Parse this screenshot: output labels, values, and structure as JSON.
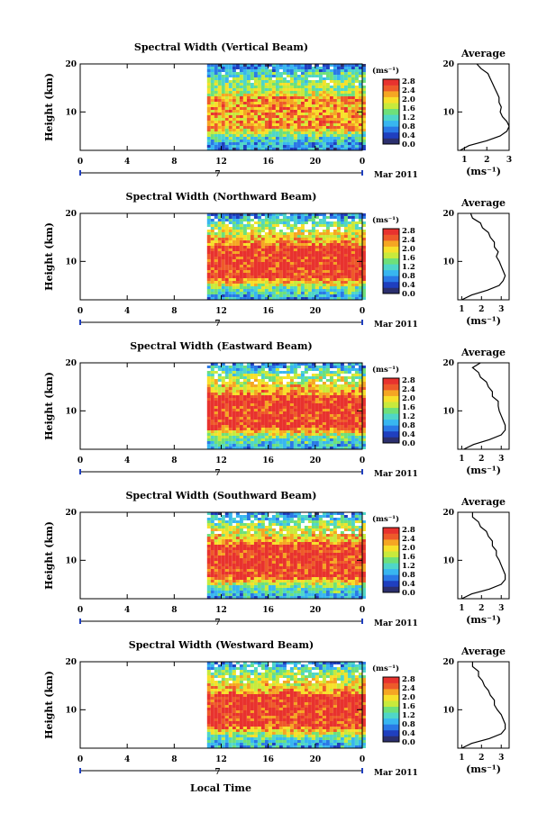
{
  "page": {
    "xlabel": "Local Time"
  },
  "colors": {
    "ramp": [
      "#2b2f6e",
      "#1f3fbf",
      "#2a79e6",
      "#38b6f0",
      "#4fd6c8",
      "#6ee07a",
      "#c8ea3c",
      "#f7e02a",
      "#f5a623",
      "#ee5a2a",
      "#e8322e"
    ]
  },
  "chart_data": [
    {
      "type": "heatmap",
      "title": "Spectral Width (Vertical Beam)",
      "beam": "Vertical",
      "ylabel": "Height (km)",
      "y_ticks": [
        10,
        20
      ],
      "ylim": [
        2,
        20
      ],
      "x_ticks": [
        "0",
        "4",
        "8",
        "12",
        "16",
        "20",
        "0"
      ],
      "xlim": [
        0,
        24
      ],
      "day_label": "7",
      "month_label": "Mar 2011",
      "colorbar": {
        "unit": "(ms⁻¹)",
        "ticks": [
          "2.8",
          "2.4",
          "2.0",
          "1.6",
          "1.2",
          "0.8",
          "0.4",
          "0.0"
        ],
        "range": [
          0,
          2.8
        ]
      },
      "data_start_hour": 10.8,
      "average": {
        "title": "Average",
        "xunit": "(ms⁻¹)",
        "x_ticks": [
          "1",
          "2",
          "3"
        ],
        "xlim": [
          0.7,
          3
        ],
        "heights": [
          2,
          3,
          4,
          5,
          6,
          7,
          8,
          9,
          10,
          11,
          12,
          13,
          14,
          15,
          16,
          17,
          18,
          19,
          20
        ],
        "values": [
          0.8,
          1.2,
          2.0,
          2.6,
          2.9,
          3.0,
          2.9,
          2.7,
          2.6,
          2.7,
          2.5,
          2.6,
          2.4,
          2.4,
          2.2,
          2.2,
          2.0,
          1.8,
          1.5
        ]
      }
    },
    {
      "type": "heatmap",
      "title": "Spectral Width (Northward Beam)",
      "beam": "Northward",
      "ylabel": "Height (km)",
      "y_ticks": [
        10,
        20
      ],
      "ylim": [
        2,
        20
      ],
      "x_ticks": [
        "0",
        "4",
        "8",
        "12",
        "16",
        "20",
        "0"
      ],
      "xlim": [
        0,
        24
      ],
      "day_label": "7",
      "month_label": "Mar 2011",
      "colorbar": {
        "unit": "(ms⁻¹)",
        "ticks": [
          "2.8",
          "2.4",
          "2.0",
          "1.6",
          "1.2",
          "0.8",
          "0.4",
          "0.0"
        ],
        "range": [
          0,
          2.8
        ]
      },
      "data_start_hour": 10.8,
      "average": {
        "title": "Average",
        "xunit": "(ms⁻¹)",
        "x_ticks": [
          "1",
          "2",
          "3"
        ],
        "xlim": [
          0.8,
          3.4
        ],
        "heights": [
          2,
          3,
          4,
          5,
          6,
          7,
          8,
          9,
          10,
          11,
          12,
          13,
          14,
          15,
          16,
          17,
          18,
          19,
          20
        ],
        "values": [
          1.0,
          1.5,
          2.3,
          2.9,
          3.1,
          3.2,
          3.1,
          3.0,
          2.9,
          2.8,
          2.8,
          2.7,
          2.6,
          2.5,
          2.3,
          2.1,
          1.9,
          1.6,
          1.4
        ]
      }
    },
    {
      "type": "heatmap",
      "title": "Spectral Width (Eastward Beam)",
      "beam": "Eastward",
      "ylabel": "Height (km)",
      "y_ticks": [
        10,
        20
      ],
      "ylim": [
        2,
        20
      ],
      "x_ticks": [
        "0",
        "4",
        "8",
        "12",
        "16",
        "20",
        "0"
      ],
      "xlim": [
        0,
        24
      ],
      "day_label": "7",
      "month_label": "Mar 2011",
      "colorbar": {
        "unit": "(ms⁻¹)",
        "ticks": [
          "2.8",
          "2.4",
          "2.0",
          "1.6",
          "1.2",
          "0.8",
          "0.4",
          "0.0"
        ],
        "range": [
          0,
          2.8
        ]
      },
      "data_start_hour": 10.8,
      "average": {
        "title": "Average",
        "xunit": "(ms⁻¹)",
        "x_ticks": [
          "1",
          "2",
          "3"
        ],
        "xlim": [
          0.8,
          3.4
        ],
        "heights": [
          2,
          3,
          4,
          5,
          6,
          7,
          8,
          9,
          10,
          11,
          12,
          13,
          14,
          15,
          16,
          17,
          18,
          19,
          20
        ],
        "values": [
          1.1,
          1.6,
          2.4,
          3.0,
          3.2,
          3.2,
          3.1,
          3.0,
          2.9,
          2.9,
          2.8,
          2.6,
          2.5,
          2.4,
          2.2,
          2.0,
          1.8,
          1.6,
          1.9
        ]
      }
    },
    {
      "type": "heatmap",
      "title": "Spectral Width (Southward Beam)",
      "beam": "Southward",
      "ylabel": "Height (km)",
      "y_ticks": [
        10,
        20
      ],
      "ylim": [
        2,
        20
      ],
      "x_ticks": [
        "0",
        "4",
        "8",
        "12",
        "16",
        "20",
        "0"
      ],
      "xlim": [
        0,
        24
      ],
      "day_label": "7",
      "month_label": "Mar 2011",
      "colorbar": {
        "unit": "(ms⁻¹)",
        "ticks": [
          "2.8",
          "2.4",
          "2.0",
          "1.6",
          "1.2",
          "0.8",
          "0.4",
          "0.0"
        ],
        "range": [
          0,
          2.8
        ]
      },
      "data_start_hour": 10.8,
      "average": {
        "title": "Average",
        "xunit": "(ms⁻¹)",
        "x_ticks": [
          "1",
          "2",
          "3"
        ],
        "xlim": [
          0.8,
          3.4
        ],
        "heights": [
          2,
          3,
          4,
          5,
          6,
          7,
          8,
          9,
          10,
          11,
          12,
          13,
          14,
          15,
          16,
          17,
          18,
          19,
          20
        ],
        "values": [
          1.0,
          1.5,
          2.4,
          3.0,
          3.2,
          3.2,
          3.1,
          3.0,
          2.9,
          2.8,
          2.7,
          2.6,
          2.5,
          2.4,
          2.2,
          2.0,
          1.8,
          1.6,
          1.5
        ]
      }
    },
    {
      "type": "heatmap",
      "title": "Spectral Width (Westward Beam)",
      "beam": "Westward",
      "ylabel": "Height (km)",
      "y_ticks": [
        10,
        20
      ],
      "ylim": [
        2,
        20
      ],
      "x_ticks": [
        "0",
        "4",
        "8",
        "12",
        "16",
        "20",
        "0"
      ],
      "xlim": [
        0,
        24
      ],
      "day_label": "7",
      "month_label": "Mar 2011",
      "colorbar": {
        "unit": "(ms⁻¹)",
        "ticks": [
          "2.8",
          "2.4",
          "2.0",
          "1.6",
          "1.2",
          "0.8",
          "0.4",
          "0.0"
        ],
        "range": [
          0,
          2.8
        ]
      },
      "data_start_hour": 10.8,
      "average": {
        "title": "Average",
        "xunit": "(ms⁻¹)",
        "x_ticks": [
          "1",
          "2",
          "3"
        ],
        "xlim": [
          0.8,
          3.4
        ],
        "heights": [
          2,
          3,
          4,
          5,
          6,
          7,
          8,
          9,
          10,
          11,
          12,
          13,
          14,
          15,
          16,
          17,
          18,
          19,
          20
        ],
        "values": [
          1.0,
          1.5,
          2.4,
          3.0,
          3.2,
          3.2,
          3.1,
          3.0,
          2.8,
          2.7,
          2.6,
          2.5,
          2.3,
          2.2,
          2.0,
          1.9,
          1.8,
          1.6,
          1.5
        ]
      }
    }
  ]
}
